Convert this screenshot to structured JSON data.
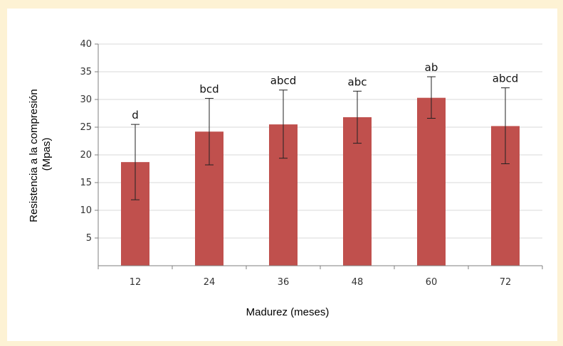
{
  "chart_data": {
    "type": "bar",
    "categories": [
      "12",
      "24",
      "36",
      "48",
      "60",
      "72"
    ],
    "values": [
      18.7,
      24.2,
      25.5,
      26.8,
      30.3,
      25.2
    ],
    "error_high": [
      25.5,
      30.2,
      31.7,
      31.5,
      34.1,
      32.1
    ],
    "error_low": [
      11.9,
      18.2,
      19.4,
      22.1,
      26.6,
      18.4
    ],
    "bar_labels": [
      "d",
      "bcd",
      "abcd",
      "abc",
      "ab",
      "abcd"
    ],
    "xlabel": "Madurez (meses)",
    "ylabel": [
      "Resistencia a la compresión",
      "(Mpas)"
    ],
    "ylim": [
      0,
      40
    ],
    "yticks": [
      "5",
      "10",
      "15",
      "20",
      "25",
      "30",
      "35",
      "40"
    ],
    "grid": true,
    "colors": {
      "bar": "#c0504d",
      "grid": "#d9d9d9",
      "axis": "#7f7f7f"
    }
  }
}
